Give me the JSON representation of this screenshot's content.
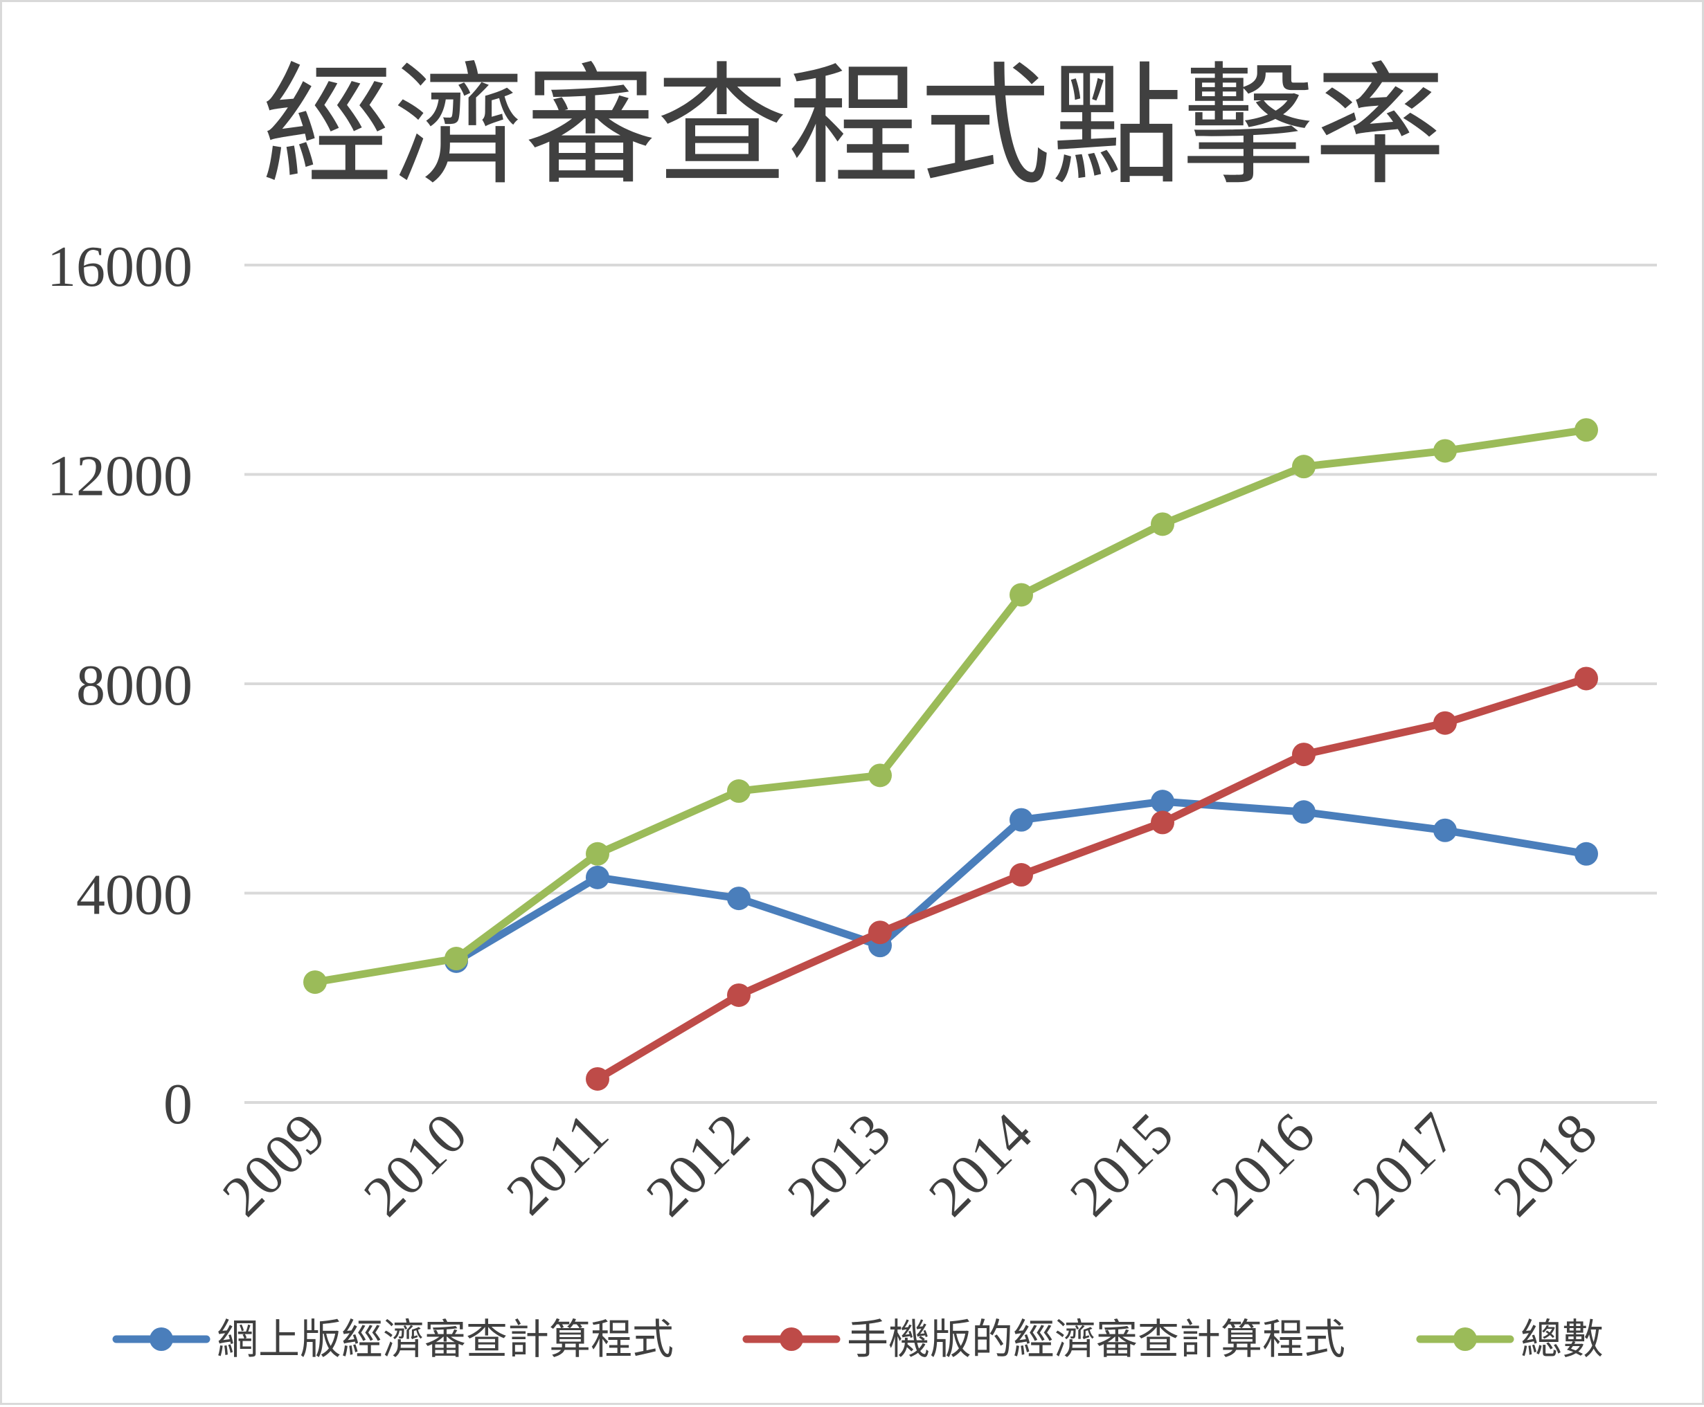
{
  "chart_data": {
    "type": "line",
    "title": "經濟審查程式點擊率",
    "categories": [
      "2009",
      "2010",
      "2011",
      "2012",
      "2013",
      "2014",
      "2015",
      "2016",
      "2017",
      "2018"
    ],
    "yticks": [
      "0",
      "4000",
      "8000",
      "12000",
      "16000"
    ],
    "ylim": [
      0,
      16000
    ],
    "grid": true,
    "legend_position": "bottom",
    "series": [
      {
        "name": "網上版經濟審查計算程式",
        "color": "#4a7ebb",
        "values": [
          null,
          2700,
          4300,
          3900,
          3000,
          5400,
          5750,
          5550,
          5200,
          4750
        ]
      },
      {
        "name": "手機版的經濟審查計算程式",
        "color": "#be4b48",
        "values": [
          null,
          null,
          450,
          2050,
          3250,
          4350,
          5350,
          6650,
          7250,
          8100
        ]
      },
      {
        "name": "總數",
        "color": "#9bbb59",
        "values": [
          2300,
          2750,
          4750,
          5950,
          6250,
          9700,
          11050,
          12150,
          12450,
          12850
        ]
      }
    ]
  }
}
